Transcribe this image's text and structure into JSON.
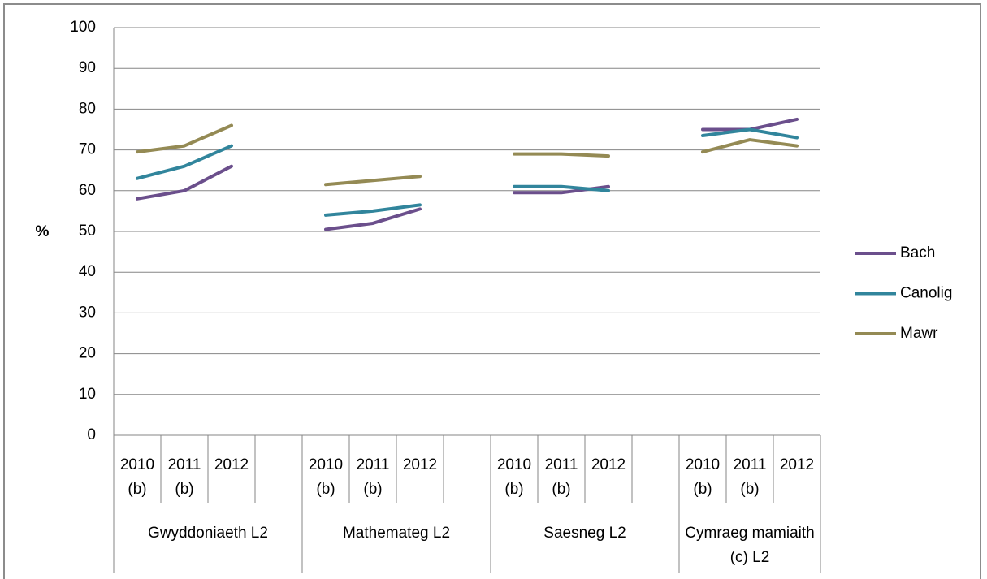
{
  "chart_data": {
    "type": "line",
    "ylabel": "%",
    "categories": [
      "2010 (b)",
      "2011 (b)",
      "2012",
      null,
      "2010 (b)",
      "2011 (b)",
      "2012",
      null,
      "2010 (b)",
      "2011 (b)",
      "2012",
      null,
      "2010 (b)",
      "2011 (b)",
      "2012"
    ],
    "groups": [
      "Gwyddoniaeth L2",
      "Mathemateg L2",
      "Saesneg L2",
      "Cymraeg mamiaith (c) L2"
    ],
    "series": [
      {
        "name": "Bach",
        "color": "#6b4f8c",
        "values": [
          58,
          60,
          66,
          null,
          50.5,
          52,
          55.5,
          null,
          59.5,
          59.5,
          61,
          null,
          75,
          75,
          77.5
        ]
      },
      {
        "name": "Canolig",
        "color": "#31859c",
        "values": [
          63,
          66,
          71,
          null,
          54,
          55,
          56.5,
          null,
          61,
          61,
          60,
          null,
          73.5,
          75,
          73
        ]
      },
      {
        "name": "Mawr",
        "color": "#948a54",
        "values": [
          69.5,
          71,
          76,
          null,
          61.5,
          62.5,
          63.5,
          null,
          69,
          69,
          68.5,
          null,
          69.5,
          72.5,
          71
        ]
      }
    ],
    "ylim": [
      0,
      100
    ],
    "yticks": [
      0,
      10,
      20,
      30,
      40,
      50,
      60,
      70,
      80,
      90,
      100
    ],
    "grid": true,
    "legend": "right"
  }
}
